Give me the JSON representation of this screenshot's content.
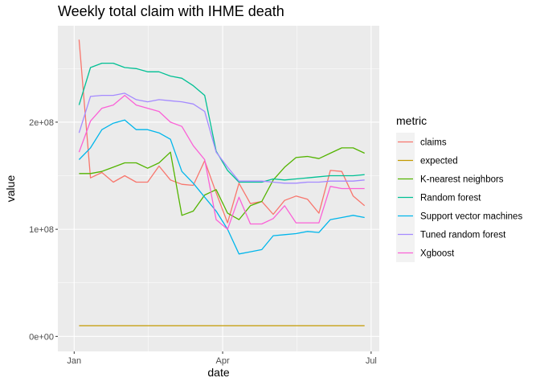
{
  "chart_data": {
    "type": "line",
    "title": "Weekly total claim with IHME death",
    "xlabel": "date",
    "ylabel": "value",
    "x_tick_labels": [
      {
        "date": "2020-01-01",
        "label": "Jan"
      },
      {
        "date": "2020-04-01",
        "label": "Apr"
      },
      {
        "date": "2020-07-01",
        "label": "Jul"
      }
    ],
    "y_ticks": [
      {
        "value": 0,
        "label": "0e+00"
      },
      {
        "value": 100000000,
        "label": "1e+08"
      },
      {
        "value": 200000000,
        "label": "2e+08"
      }
    ],
    "xlim": [
      "2019-12-22",
      "2020-07-06"
    ],
    "ylim": [
      -14000000,
      290000000
    ],
    "grid": true,
    "legend_position": "right",
    "legend_title": "metric",
    "x": [
      "2020-01-04",
      "2020-01-11",
      "2020-01-18",
      "2020-01-25",
      "2020-02-01",
      "2020-02-08",
      "2020-02-15",
      "2020-02-22",
      "2020-02-29",
      "2020-03-07",
      "2020-03-14",
      "2020-03-21",
      "2020-03-28",
      "2020-04-04",
      "2020-04-11",
      "2020-04-18",
      "2020-04-25",
      "2020-05-02",
      "2020-05-09",
      "2020-05-16",
      "2020-05-23",
      "2020-05-30",
      "2020-06-06",
      "2020-06-13",
      "2020-06-20",
      "2020-06-27"
    ],
    "series": [
      {
        "name": "claims",
        "color": "#F8766D",
        "values": [
          277,
          148,
          153,
          144,
          150,
          144,
          144,
          159,
          146,
          142,
          141,
          164,
          134,
          106,
          143,
          124,
          126,
          114,
          127,
          131,
          128,
          115,
          155,
          154,
          131,
          122
        ]
      },
      {
        "name": "expected",
        "color": "#C49A00",
        "values": [
          10,
          10,
          10,
          10,
          10,
          10,
          10,
          10,
          10,
          10,
          10,
          10,
          10,
          10,
          10,
          10,
          10,
          10,
          10,
          10,
          10,
          10,
          10,
          10,
          10,
          10
        ]
      },
      {
        "name": "K-nearest neighbors",
        "color": "#53B400",
        "values": [
          152,
          152,
          154,
          158,
          162,
          162,
          157,
          162,
          172,
          113,
          117,
          132,
          137,
          115,
          109,
          122,
          126,
          146,
          158,
          167,
          168,
          166,
          171,
          176,
          176,
          171
        ]
      },
      {
        "name": "Random forest",
        "color": "#00C094",
        "values": [
          216,
          251,
          255,
          255,
          251,
          250,
          247,
          247,
          243,
          241,
          234,
          225,
          173,
          155,
          144,
          144,
          144,
          147,
          146,
          147,
          148,
          149,
          150,
          150,
          150,
          151
        ]
      },
      {
        "name": "Support vector machines",
        "color": "#00B6EB",
        "values": [
          165,
          176,
          193,
          199,
          202,
          193,
          193,
          190,
          184,
          154,
          143,
          130,
          117,
          100,
          77,
          79,
          81,
          94,
          95,
          96,
          98,
          97,
          109,
          111,
          113,
          111
        ]
      },
      {
        "name": "Tuned random forest",
        "color": "#A58AFF",
        "values": [
          190,
          224,
          225,
          225,
          227,
          221,
          219,
          221,
          220,
          219,
          217,
          210,
          172,
          158,
          145,
          145,
          145,
          144,
          143,
          143,
          144,
          144,
          145,
          145,
          145,
          146
        ]
      },
      {
        "name": "Xgboost",
        "color": "#FB61D7",
        "values": [
          172,
          201,
          213,
          216,
          225,
          216,
          213,
          210,
          200,
          196,
          178,
          165,
          109,
          100,
          130,
          105,
          105,
          110,
          122,
          106,
          106,
          106,
          140,
          138,
          138,
          138
        ]
      }
    ],
    "value_scale": 1000000
  }
}
